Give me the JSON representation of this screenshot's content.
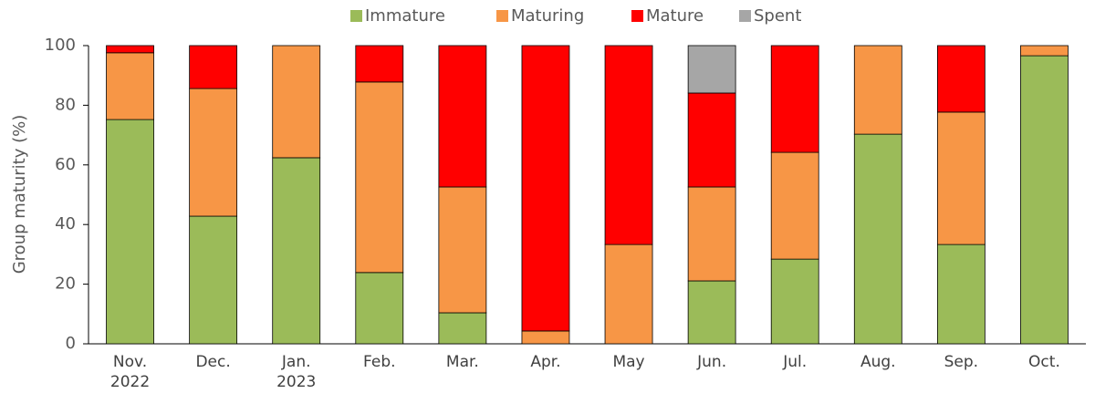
{
  "chart_data": {
    "type": "stacked_bar",
    "y_label": "Group maturity (%)",
    "categories": [
      "Nov. 2022",
      "Dec.",
      "Jan. 2023",
      "Feb.",
      "Mar.",
      "Apr.",
      "May",
      "Jun.",
      "Jul.",
      "Aug.",
      "Sep.",
      "Oct."
    ],
    "series": [
      {
        "name": "Immature",
        "color": "#9bbb59",
        "values": [
          75.2,
          42.8,
          62.4,
          23.9,
          10.4,
          0,
          0,
          21.1,
          28.4,
          70.3,
          33.3,
          96.6
        ]
      },
      {
        "name": "Maturing",
        "color": "#f79646",
        "values": [
          22.4,
          42.8,
          37.6,
          63.9,
          42.2,
          4.3,
          33.3,
          31.5,
          35.8,
          29.7,
          44.4,
          3.4
        ]
      },
      {
        "name": "Mature",
        "color": "#ff0000",
        "values": [
          2.4,
          14.4,
          0,
          12.2,
          47.4,
          95.7,
          66.7,
          31.5,
          35.8,
          0,
          22.3,
          0
        ]
      },
      {
        "name": "Spent",
        "color": "#a6a6a6",
        "values": [
          0,
          0,
          0,
          0,
          0,
          0,
          0,
          15.9,
          0,
          0,
          0,
          0
        ]
      }
    ],
    "ylim": [
      0,
      100
    ],
    "yticks": [
      0,
      20,
      40,
      60,
      80,
      100
    ],
    "legend": "top"
  }
}
